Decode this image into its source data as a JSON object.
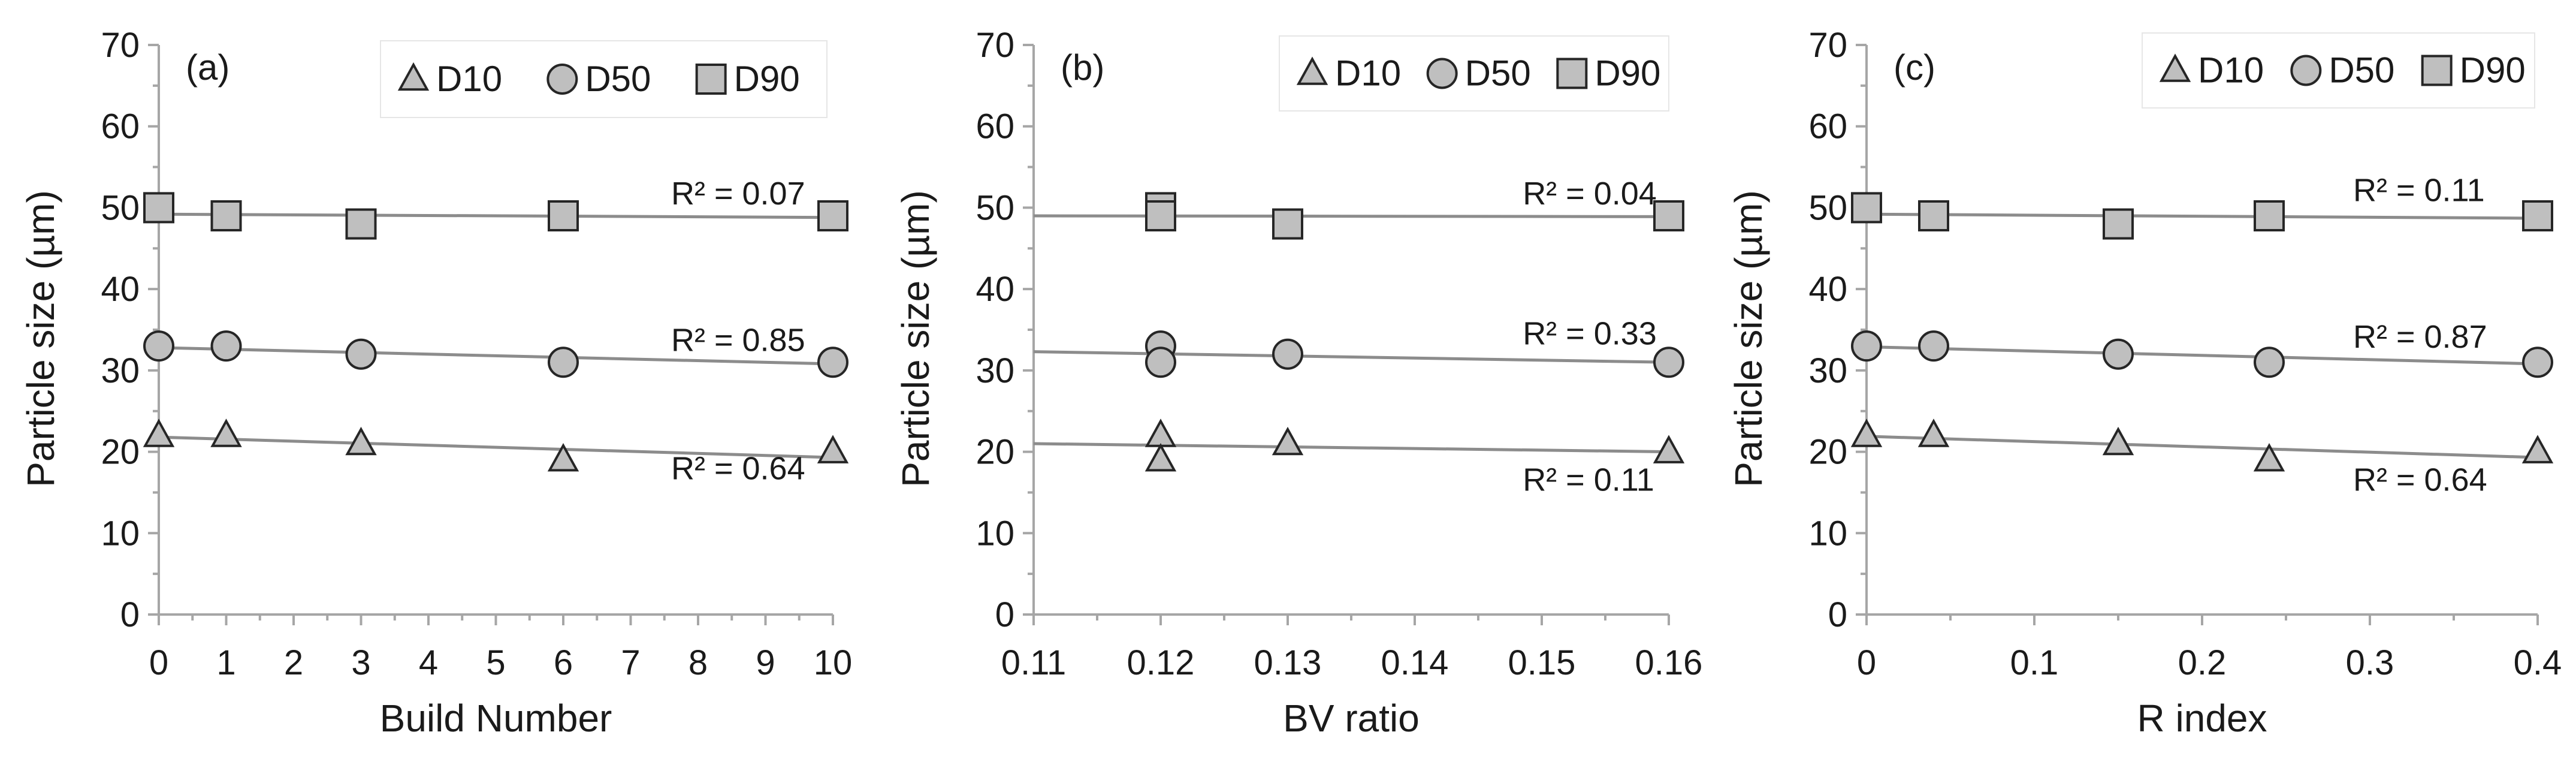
{
  "colors": {
    "marker_fill": "#bfbfbf",
    "marker_stroke": "#262626",
    "trend_line": "#8c8c8c",
    "axis": "#a6a6a6"
  },
  "chart_data": [
    {
      "type": "scatter",
      "panel_label": "(a)",
      "xlabel": "Build Number",
      "ylabel": "Particle size (µm)",
      "xlim": [
        0,
        10
      ],
      "ylim": [
        0,
        70
      ],
      "xticks": [
        0,
        1,
        2,
        3,
        4,
        5,
        6,
        7,
        8,
        9,
        10
      ],
      "xtick_labels": [
        "0",
        "1",
        "2",
        "3",
        "4",
        "5",
        "6",
        "7",
        "8",
        "9",
        "10"
      ],
      "yticks": [
        0,
        10,
        20,
        30,
        40,
        50,
        60,
        70
      ],
      "ytick_labels": [
        "0",
        "10",
        "20",
        "30",
        "40",
        "50",
        "60",
        "70"
      ],
      "legend": [
        "D10",
        "D50",
        "D90"
      ],
      "series": [
        {
          "name": "D10",
          "marker": "triangle",
          "x": [
            0,
            1,
            3,
            6,
            10
          ],
          "y": [
            22,
            22,
            21,
            19,
            20
          ],
          "trend": [
            21.8,
            19.3
          ],
          "r2_label": "R² = 0.64",
          "r2_anchor": [
            7.6,
            16.6
          ]
        },
        {
          "name": "D50",
          "marker": "circle",
          "x": [
            0,
            1,
            3,
            6,
            10
          ],
          "y": [
            33,
            33,
            32,
            31,
            31
          ],
          "trend": [
            32.8,
            30.8
          ],
          "r2_label": "R² = 0.85",
          "r2_anchor": [
            7.6,
            32.4
          ]
        },
        {
          "name": "D90",
          "marker": "square",
          "x": [
            0,
            1,
            3,
            6,
            10
          ],
          "y": [
            50,
            49,
            48,
            49,
            49
          ],
          "trend": [
            49.2,
            48.8
          ],
          "r2_label": "R² = 0.07",
          "r2_anchor": [
            7.6,
            50.4
          ]
        }
      ]
    },
    {
      "type": "scatter",
      "panel_label": "(b)",
      "xlabel": "BV ratio",
      "ylabel": "Particle size (µm)",
      "xlim": [
        0.11,
        0.16
      ],
      "ylim": [
        0,
        70
      ],
      "xticks": [
        0.11,
        0.12,
        0.13,
        0.14,
        0.15,
        0.16
      ],
      "xtick_labels": [
        "0.11",
        "0.12",
        "0.13",
        "0.14",
        "0.15",
        "0.16"
      ],
      "yticks": [
        0,
        10,
        20,
        30,
        40,
        50,
        60,
        70
      ],
      "ytick_labels": [
        "0",
        "10",
        "20",
        "30",
        "40",
        "50",
        "60",
        "70"
      ],
      "legend": [
        "D10",
        "D50",
        "D90"
      ],
      "series": [
        {
          "name": "D10",
          "marker": "triangle",
          "x": [
            0.12,
            0.12,
            0.13,
            0.16
          ],
          "y": [
            22,
            19,
            21,
            20
          ],
          "trend": [
            21.0,
            20.0
          ],
          "r2_label": "R² = 0.11",
          "r2_anchor": [
            0.1485,
            15.2
          ]
        },
        {
          "name": "D50",
          "marker": "circle",
          "x": [
            0.12,
            0.12,
            0.13,
            0.16
          ],
          "y": [
            33,
            31,
            32,
            31
          ],
          "trend": [
            32.3,
            31.0
          ],
          "r2_label": "R² = 0.33",
          "r2_anchor": [
            0.1485,
            33.2
          ]
        },
        {
          "name": "D90",
          "marker": "square",
          "x": [
            0.12,
            0.12,
            0.13,
            0.16
          ],
          "y": [
            50,
            49,
            48,
            49
          ],
          "trend": [
            49.0,
            48.9
          ],
          "r2_label": "R² = 0.04",
          "r2_anchor": [
            0.1485,
            50.4
          ]
        }
      ]
    },
    {
      "type": "scatter",
      "panel_label": "(c)",
      "xlabel": "R index",
      "ylabel": "Particle size (µm)",
      "xlim": [
        0,
        0.4
      ],
      "ylim": [
        0,
        70
      ],
      "xticks": [
        0,
        0.1,
        0.2,
        0.3,
        0.4
      ],
      "xtick_labels": [
        "0",
        "0.1",
        "0.2",
        "0.3",
        "0.4"
      ],
      "yticks": [
        0,
        10,
        20,
        30,
        40,
        50,
        60,
        70
      ],
      "ytick_labels": [
        "0",
        "10",
        "20",
        "30",
        "40",
        "50",
        "60",
        "70"
      ],
      "legend": [
        "D10",
        "D50",
        "D90"
      ],
      "series": [
        {
          "name": "D10",
          "marker": "triangle",
          "x": [
            0,
            0.04,
            0.15,
            0.24,
            0.4
          ],
          "y": [
            22,
            22,
            21,
            19,
            20
          ],
          "trend": [
            21.9,
            19.3
          ],
          "r2_label": "R² = 0.64",
          "r2_anchor": [
            0.29,
            15.2
          ]
        },
        {
          "name": "D50",
          "marker": "circle",
          "x": [
            0,
            0.04,
            0.15,
            0.24,
            0.4
          ],
          "y": [
            33,
            33,
            32,
            31,
            31
          ],
          "trend": [
            32.9,
            30.8
          ],
          "r2_label": "R² = 0.87",
          "r2_anchor": [
            0.29,
            32.8
          ]
        },
        {
          "name": "D90",
          "marker": "square",
          "x": [
            0,
            0.04,
            0.15,
            0.24,
            0.4
          ],
          "y": [
            50,
            49,
            48,
            49,
            49
          ],
          "trend": [
            49.2,
            48.7
          ],
          "r2_label": "R² = 0.11",
          "r2_anchor": [
            0.29,
            50.8
          ]
        }
      ]
    }
  ]
}
